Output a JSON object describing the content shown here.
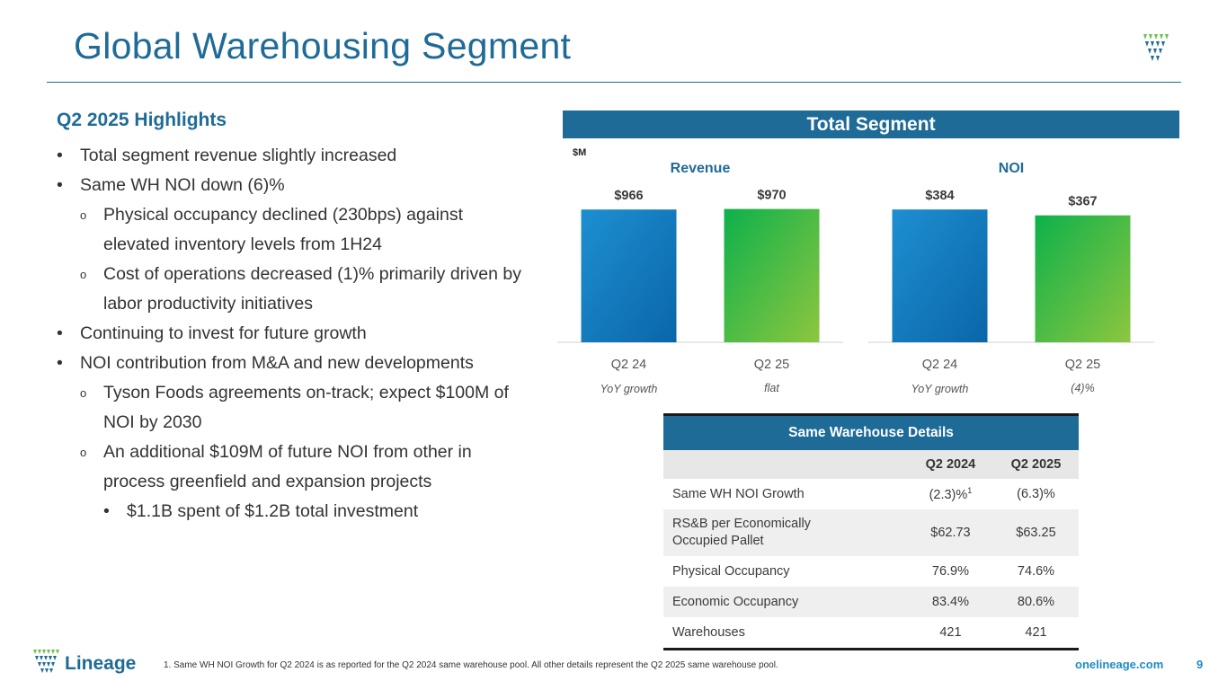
{
  "title": "Global Warehousing Segment",
  "highlights": {
    "heading": "Q2 2025 Highlights",
    "items": [
      "Total segment revenue slightly increased",
      "Same WH NOI down (6)%",
      "Physical occupancy declined (230bps) against",
      "elevated inventory levels from 1H24",
      "Cost of operations decreased (1)% primarily driven by",
      "labor productivity initiatives",
      "Continuing to invest for future growth",
      "NOI contribution from M&A and new developments",
      "Tyson Foods agreements on-track; expect $100M of",
      "NOI by 2030",
      "An additional $109M of future NOI from other in",
      "process greenfield and expansion projects",
      "$1.1B spent of $1.2B total investment"
    ]
  },
  "banner": "Total Segment",
  "unit": "$M",
  "chart_data": [
    {
      "type": "bar",
      "title": "Revenue",
      "categories": [
        "Q2 24",
        "Q2 25"
      ],
      "values": [
        966,
        970
      ],
      "data_labels": [
        "$966",
        "$970"
      ],
      "growth_label": "YoY growth",
      "growth_value": "flat",
      "colors": [
        "#1f6b97",
        "#6cc24a"
      ]
    },
    {
      "type": "bar",
      "title": "NOI",
      "categories": [
        "Q2 24",
        "Q2 25"
      ],
      "values": [
        384,
        367
      ],
      "data_labels": [
        "$384",
        "$367"
      ],
      "growth_label": "YoY growth",
      "growth_value": "(4)%",
      "colors": [
        "#1f6b97",
        "#6cc24a"
      ]
    }
  ],
  "table": {
    "caption": "Same Warehouse Details",
    "columns": [
      "",
      "Q2 2024",
      "Q2 2025"
    ],
    "rows": [
      {
        "label": "Same WH NOI Growth",
        "v1": "(2.3)%",
        "v1_sup": "1",
        "v2": "(6.3)%"
      },
      {
        "label": "RS&B per Economically",
        "label2": "Occupied Pallet",
        "v1": "$62.73",
        "v2": "$63.25"
      },
      {
        "label": "Physical Occupancy",
        "v1": "76.9%",
        "v2": "74.6%"
      },
      {
        "label": "Economic Occupancy",
        "v1": "83.4%",
        "v2": "80.6%"
      },
      {
        "label": "Warehouses",
        "v1": "421",
        "v2": "421"
      }
    ]
  },
  "footer": {
    "brand": "Lineage",
    "footnote": "1.     Same WH NOI Growth for Q2 2024 is as reported for the Q2 2024 same warehouse pool. All other details represent the Q2 2025 same warehouse pool.",
    "website": "onelineage.com",
    "page": "9"
  },
  "colors": {
    "accent": "#1f6b97",
    "green": "#6cc24a",
    "link": "#1f8ac6"
  }
}
